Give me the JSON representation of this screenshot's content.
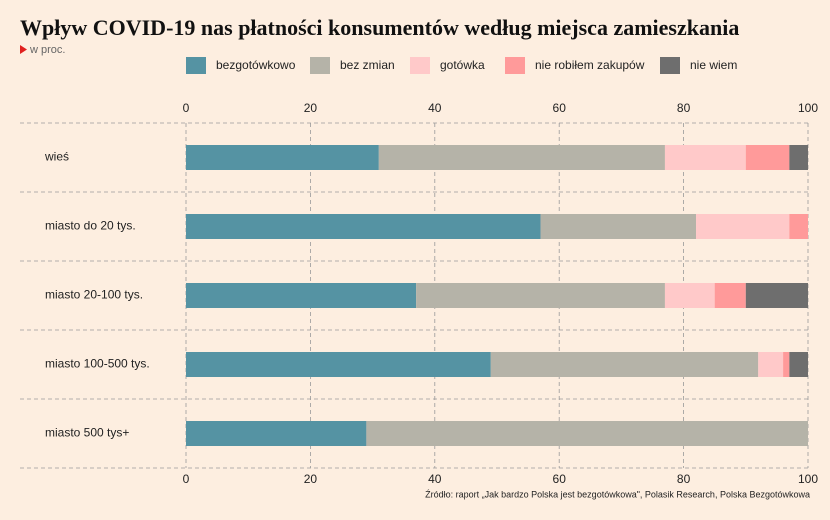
{
  "chart_data": {
    "type": "stacked_bar_horizontal",
    "title": "Wpływ COVID-19 nas płatności konsumentów według miejsca zamieszkania",
    "subtitle": "w proc.",
    "source": "Źródło: raport „Jak bardzo Polska jest bezgotówkowa\", Polasik Research, Polska Bezgotówkowa",
    "categories": [
      "wieś",
      "miasto do 20 tys.",
      "miasto 20-100 tys.",
      "miasto 100-500 tys.",
      "miasto 500 tys+"
    ],
    "series": [
      {
        "name": "bezgotówkowo",
        "color": "#5593a3",
        "values": [
          31,
          57,
          37,
          49,
          29
        ]
      },
      {
        "name": "bez zmian",
        "color": "#b5b3a8",
        "values": [
          46,
          25,
          40,
          43,
          71
        ]
      },
      {
        "name": "gotówka",
        "color": "#ffc9c9",
        "values": [
          13,
          15,
          8,
          4,
          0
        ]
      },
      {
        "name": "nie robiłem zakupów",
        "color": "#ff9a9a",
        "values": [
          7,
          3,
          5,
          1,
          0
        ]
      },
      {
        "name": "nie wiem",
        "color": "#6e6e6e",
        "values": [
          3,
          0,
          10,
          3,
          0
        ]
      }
    ],
    "xlim": [
      0,
      100
    ],
    "xticks": [
      0,
      20,
      40,
      60,
      80,
      100
    ],
    "grid": true
  }
}
